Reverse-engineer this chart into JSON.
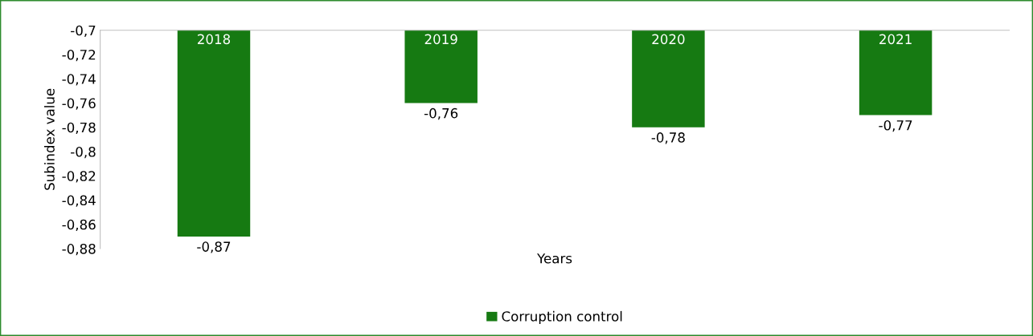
{
  "chart_data": {
    "type": "bar",
    "xlabel": "Years",
    "ylabel": "Subindex value",
    "categories": [
      "2018",
      "2019",
      "2020",
      "2021"
    ],
    "series": [
      {
        "name": "Corruption control",
        "color": "#167a12",
        "values": [
          -0.87,
          -0.76,
          -0.78,
          -0.77
        ],
        "value_labels": [
          "-0,87",
          "-0,76",
          "-0,78",
          "-0,77"
        ]
      }
    ],
    "ylim": [
      -0.88,
      -0.7
    ],
    "yticks": [
      {
        "value": -0.7,
        "label": "-0,7"
      },
      {
        "value": -0.72,
        "label": "-0,72"
      },
      {
        "value": -0.74,
        "label": "-0,74"
      },
      {
        "value": -0.76,
        "label": "-0,76"
      },
      {
        "value": -0.78,
        "label": "-0,78"
      },
      {
        "value": -0.8,
        "label": "-0,8"
      },
      {
        "value": -0.82,
        "label": "-0,82"
      },
      {
        "value": -0.84,
        "label": "-0,84"
      },
      {
        "value": -0.86,
        "label": "-0,86"
      },
      {
        "value": -0.88,
        "label": "-0,88"
      }
    ],
    "legend": "bottom"
  }
}
